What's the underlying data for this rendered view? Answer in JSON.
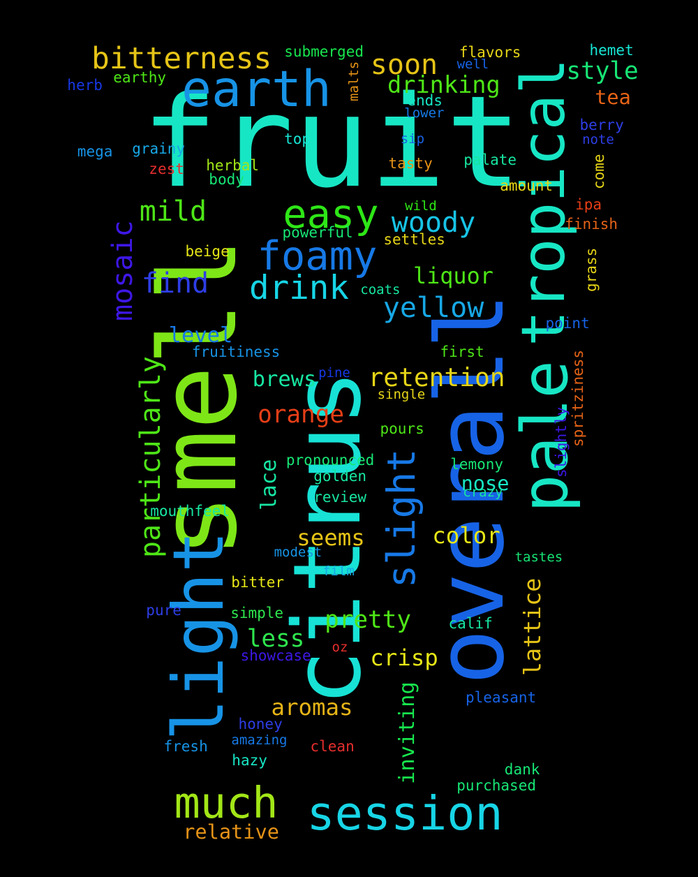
{
  "words": [
    {
      "text": "fruit",
      "color": "#17e6c4"
    },
    {
      "text": "citrus",
      "color": "#17e2d5"
    },
    {
      "text": "overall",
      "color": "#1763e6"
    },
    {
      "text": "smell",
      "color": "#7ee617"
    },
    {
      "text": "light",
      "color": "#1793e6"
    },
    {
      "text": "pale",
      "color": "#17e6c4"
    },
    {
      "text": "tropical",
      "color": "#17e6c4"
    },
    {
      "text": "earth",
      "color": "#1793e6"
    },
    {
      "text": "session",
      "color": "#17d5e6"
    },
    {
      "text": "much",
      "color": "#a2e617"
    },
    {
      "text": "easy",
      "color": "#2ee617"
    },
    {
      "text": "foamy",
      "color": "#1779e6"
    },
    {
      "text": "bitterness",
      "color": "#e6c417"
    },
    {
      "text": "slight",
      "color": "#1779e6"
    },
    {
      "text": "drink",
      "color": "#17d5e6"
    },
    {
      "text": "mosaic",
      "color": "#3e17e6"
    },
    {
      "text": "particularly",
      "color": "#4ee617"
    },
    {
      "text": "woody",
      "color": "#17c4e6"
    },
    {
      "text": "yellow",
      "color": "#17a8e6"
    },
    {
      "text": "mild",
      "color": "#4ee617"
    },
    {
      "text": "find",
      "color": "#2e3ee6"
    },
    {
      "text": "soon",
      "color": "#e6c417"
    },
    {
      "text": "drinking",
      "color": "#4ee617"
    },
    {
      "text": "style",
      "color": "#17e675"
    },
    {
      "text": "retention",
      "color": "#e6d517"
    },
    {
      "text": "aromas",
      "color": "#e6b417"
    },
    {
      "text": "pretty",
      "color": "#4ee617"
    },
    {
      "text": "less",
      "color": "#2ee64e"
    },
    {
      "text": "lattice",
      "color": "#e6c417"
    },
    {
      "text": "crisp",
      "color": "#e6e617"
    },
    {
      "text": "orange",
      "color": "#e63e17"
    },
    {
      "text": "lace",
      "color": "#17e6a2"
    },
    {
      "text": "inviting",
      "color": "#17e64e"
    },
    {
      "text": "seems",
      "color": "#e6c417"
    },
    {
      "text": "liquor",
      "color": "#4ee617"
    },
    {
      "text": "color",
      "color": "#e6e617"
    },
    {
      "text": "level",
      "color": "#1779e6"
    },
    {
      "text": "brews",
      "color": "#17e6a2"
    },
    {
      "text": "nose",
      "color": "#17e6c4"
    },
    {
      "text": "relative",
      "color": "#e69317"
    },
    {
      "text": "tea",
      "color": "#e66317"
    },
    {
      "text": "submerged",
      "color": "#17e64e"
    },
    {
      "text": "flavors",
      "color": "#e6d517"
    },
    {
      "text": "hemet",
      "color": "#17e6d5"
    },
    {
      "text": "well",
      "color": "#1763e6"
    },
    {
      "text": "earthy",
      "color": "#4ee617"
    },
    {
      "text": "herb",
      "color": "#1738e6"
    },
    {
      "text": "malts",
      "color": "#e69317"
    },
    {
      "text": "ends",
      "color": "#17e6c4"
    },
    {
      "text": "lower",
      "color": "#1779e6"
    },
    {
      "text": "berry",
      "color": "#2e3ee6"
    },
    {
      "text": "note",
      "color": "#2e3ee6"
    },
    {
      "text": "top",
      "color": "#17e6d5"
    },
    {
      "text": "sip",
      "color": "#1763e6"
    },
    {
      "text": "mega",
      "color": "#1793e6"
    },
    {
      "text": "grainy",
      "color": "#17a8e6"
    },
    {
      "text": "zest",
      "color": "#e62e2e"
    },
    {
      "text": "herbal",
      "color": "#a2e617"
    },
    {
      "text": "body",
      "color": "#17e675"
    },
    {
      "text": "tasty",
      "color": "#e69317"
    },
    {
      "text": "palate",
      "color": "#17e6a2"
    },
    {
      "text": "come",
      "color": "#e6d517"
    },
    {
      "text": "amount",
      "color": "#e6d517"
    },
    {
      "text": "ipa",
      "color": "#e63e17"
    },
    {
      "text": "finish",
      "color": "#e66317"
    },
    {
      "text": "wild",
      "color": "#2ee617"
    },
    {
      "text": "powerful",
      "color": "#17e675"
    },
    {
      "text": "settles",
      "color": "#e6d517"
    },
    {
      "text": "beige",
      "color": "#e6e617"
    },
    {
      "text": "grass",
      "color": "#e6d517"
    },
    {
      "text": "coats",
      "color": "#17e6a2"
    },
    {
      "text": "point",
      "color": "#1763e6"
    },
    {
      "text": "fruitiness",
      "color": "#1793e6"
    },
    {
      "text": "first",
      "color": "#4ee617"
    },
    {
      "text": "pine",
      "color": "#1738e6"
    },
    {
      "text": "spritziness",
      "color": "#e66317"
    },
    {
      "text": "single",
      "color": "#e6d517"
    },
    {
      "text": "slightly",
      "color": "#3e17e6"
    },
    {
      "text": "pours",
      "color": "#4ee617"
    },
    {
      "text": "pronounced",
      "color": "#17e675"
    },
    {
      "text": "lemony",
      "color": "#17e675"
    },
    {
      "text": "golden",
      "color": "#17e6a2"
    },
    {
      "text": "review",
      "color": "#17e6a2"
    },
    {
      "text": "crazy",
      "color": "#17e6a2"
    },
    {
      "text": "mouthfeel",
      "color": "#17e6a2"
    },
    {
      "text": "modest",
      "color": "#1793e6"
    },
    {
      "text": "tastes",
      "color": "#17e675"
    },
    {
      "text": "bitter",
      "color": "#e6e617"
    },
    {
      "text": "film",
      "color": "#17a8e6"
    },
    {
      "text": "pure",
      "color": "#2e3ee6"
    },
    {
      "text": "simple",
      "color": "#2ee64e"
    },
    {
      "text": "calif",
      "color": "#17e6a2"
    },
    {
      "text": "showcase",
      "color": "#3e17e6"
    },
    {
      "text": "oz",
      "color": "#e62e2e"
    },
    {
      "text": "pleasant",
      "color": "#1763e6"
    },
    {
      "text": "honey",
      "color": "#2e3ee6"
    },
    {
      "text": "amazing",
      "color": "#1779e6"
    },
    {
      "text": "fresh",
      "color": "#1793e6"
    },
    {
      "text": "clean",
      "color": "#e62e2e"
    },
    {
      "text": "hazy",
      "color": "#17e6c4"
    },
    {
      "text": "dank",
      "color": "#17e675"
    },
    {
      "text": "purchased",
      "color": "#17e675"
    }
  ]
}
